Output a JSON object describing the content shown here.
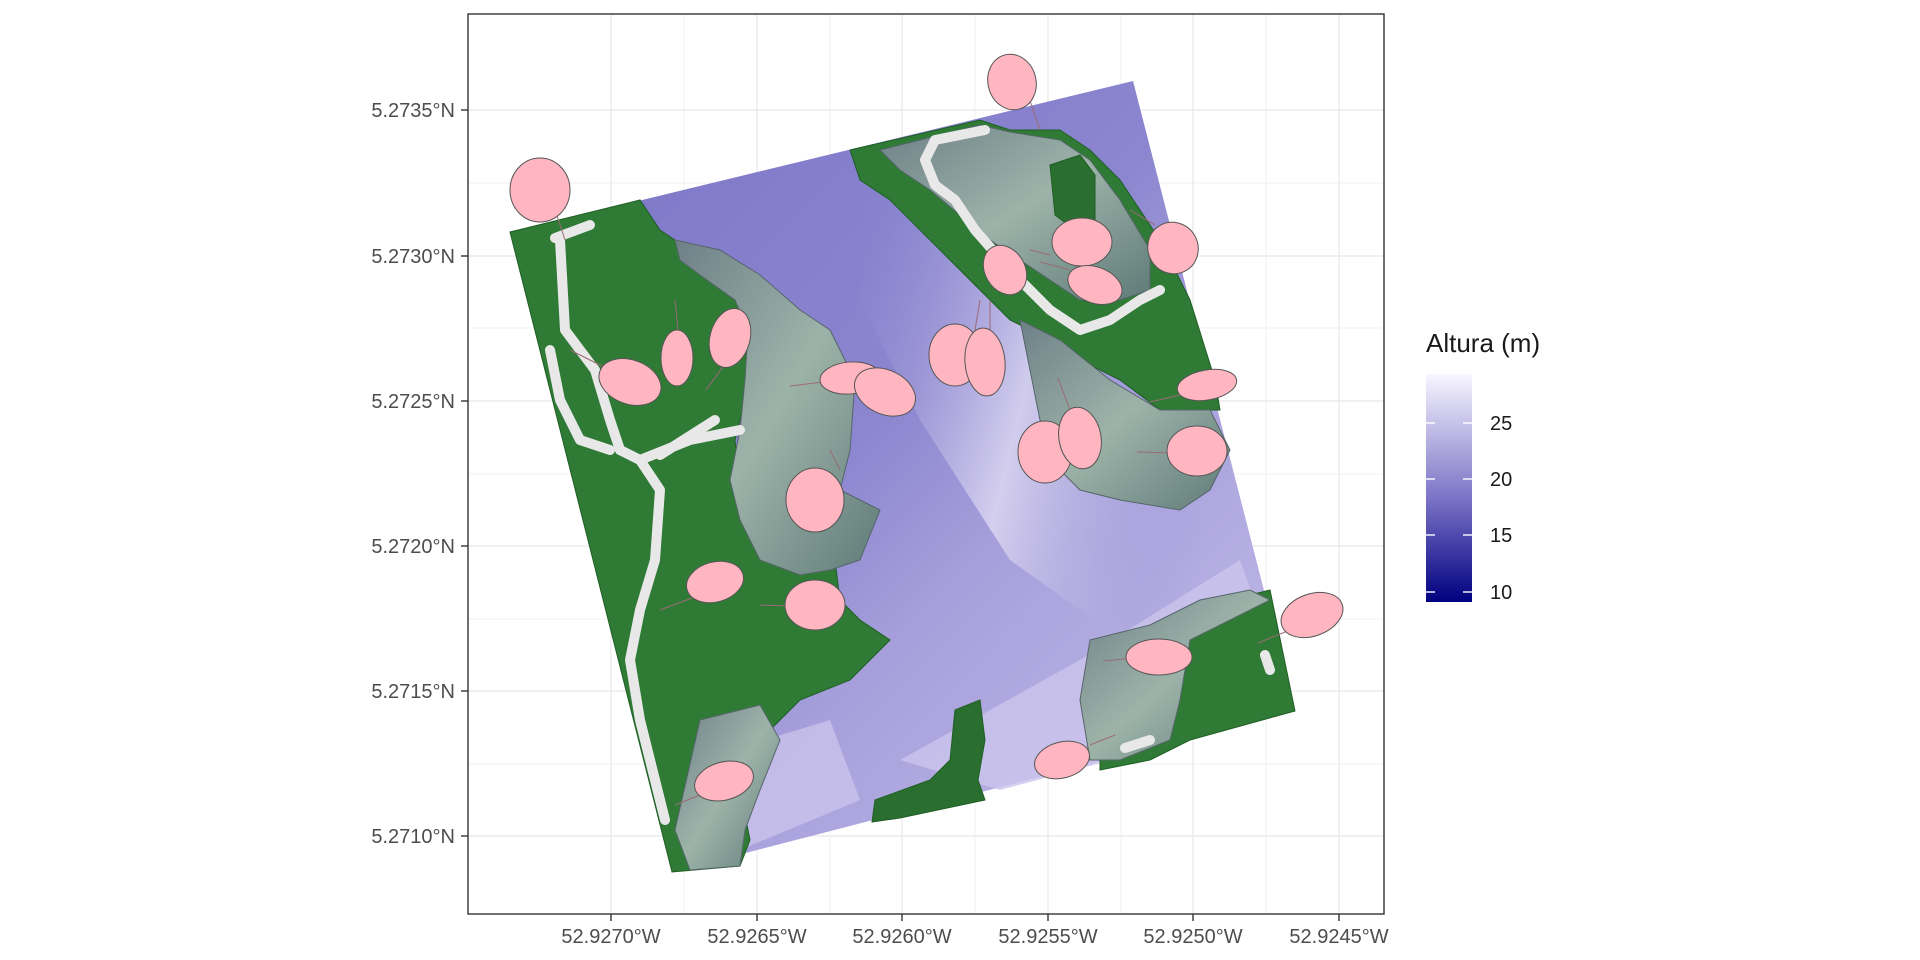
{
  "map": {
    "x_axis": {
      "labels": [
        "52.9270°W",
        "52.9265°W",
        "52.9260°W",
        "52.9255°W",
        "52.9250°W",
        "52.9245°W"
      ]
    },
    "y_axis": {
      "labels": [
        "5.2735°N",
        "5.2730°N",
        "5.2725°N",
        "5.2720°N",
        "5.2715°N",
        "5.2710°N"
      ]
    },
    "legend": {
      "title": "Altura (m)",
      "labels": [
        "25",
        "20",
        "15",
        "10"
      ],
      "gradient": [
        "#000080",
        "#8b7fd0",
        "#f8f6ff"
      ]
    },
    "colors": {
      "forest": "#2e7a35",
      "terrain_low": "#7f79c9",
      "terrain_high": "#e8e4f6",
      "slope_forest": "#8ca79e",
      "road": "#e5e5e5",
      "crown": "#ffb6c1"
    }
  }
}
